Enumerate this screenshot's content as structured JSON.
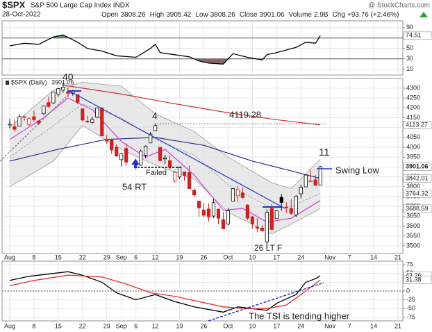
{
  "header": {
    "symbol": "$SPX",
    "name": "S&P 500 Large Cap Index INDX",
    "date": "28-Oct-2022",
    "source": "@ StockCharts.com",
    "quote": [
      {
        "label": "Open",
        "value": "3808.26"
      },
      {
        "label": "High",
        "value": "3905.42"
      },
      {
        "label": "Low",
        "value": "3808.26"
      },
      {
        "label": "Close",
        "value": "3901.06"
      },
      {
        "label": "Volume",
        "value": "2.9B"
      },
      {
        "label": "Chg",
        "value": "+93.76 (+2.46%)"
      }
    ]
  },
  "chart_data": [
    {
      "type": "line",
      "ylim": [
        -1,
        103
      ],
      "yticks": [
        90,
        70,
        50,
        30,
        10
      ],
      "levels": [
        70,
        30
      ],
      "fill_above": "#5e8f5e",
      "fill_below": "#8f6464",
      "series": [
        {
          "color": "#000000",
          "flag": true,
          "x": [
            "2022-08-01",
            "2022-08-04",
            "2022-08-09",
            "2022-08-12",
            "2022-08-16",
            "2022-08-19",
            "2022-08-23",
            "2022-08-26",
            "2022-08-31",
            "2022-09-06",
            "2022-09-09",
            "2022-09-12",
            "2022-09-13",
            "2022-09-16",
            "2022-09-21",
            "2022-09-23",
            "2022-09-27",
            "2022-09-30",
            "2022-10-04",
            "2022-10-07",
            "2022-10-12",
            "2022-10-13",
            "2022-10-17",
            "2022-10-21",
            "2022-10-25",
            "2022-10-27",
            "2022-10-28"
          ],
          "values": [
            55,
            60,
            58,
            72,
            76,
            62,
            50,
            45,
            36,
            33,
            50,
            58,
            42,
            38,
            34,
            26,
            22,
            20,
            40,
            33,
            28,
            38,
            42,
            52,
            62,
            60,
            74.51
          ]
        }
      ]
    },
    {
      "type": "candlestick",
      "legend": "$SPX (Daily)",
      "up_color": "#000000",
      "down_color": "#cc2222",
      "xlim": [
        "2022-07-29",
        "2022-11-22"
      ],
      "ylim": [
        3461,
        4349
      ],
      "yticks": [
        3500,
        3550,
        3600,
        3650,
        3700,
        3750,
        3800,
        3850,
        3900,
        3950,
        4000,
        4050,
        4100,
        4150,
        4200,
        4250,
        4300
      ],
      "xticks": [
        {
          "value": "2022-08-01",
          "label": "Aug"
        },
        {
          "value": "2022-08-08",
          "label": "8"
        },
        {
          "value": "2022-08-15",
          "label": "15"
        },
        {
          "value": "2022-08-22",
          "label": "22"
        },
        {
          "value": "2022-08-29",
          "label": "29"
        },
        {
          "value": "2022-09-01",
          "label": "Sep"
        },
        {
          "value": "2022-09-06",
          "label": "6"
        },
        {
          "value": "2022-09-12",
          "label": "12"
        },
        {
          "value": "2022-09-19",
          "label": "19"
        },
        {
          "value": "2022-09-26",
          "label": "26"
        },
        {
          "value": "2022-10-03",
          "label": "Oct"
        },
        {
          "value": "2022-10-10",
          "label": "10"
        },
        {
          "value": "2022-10-17",
          "label": "17"
        },
        {
          "value": "2022-10-24",
          "label": "24"
        },
        {
          "value": "2022-11-01",
          "label": "Nov"
        },
        {
          "value": "2022-11-07",
          "label": "7"
        },
        {
          "value": "2022-11-14",
          "label": "14"
        },
        {
          "value": "2022-11-21",
          "label": "21"
        }
      ],
      "x": [
        "2022-08-01",
        "2022-08-02",
        "2022-08-03",
        "2022-08-04",
        "2022-08-05",
        "2022-08-08",
        "2022-08-09",
        "2022-08-10",
        "2022-08-11",
        "2022-08-12",
        "2022-08-15",
        "2022-08-16",
        "2022-08-17",
        "2022-08-18",
        "2022-08-19",
        "2022-08-22",
        "2022-08-23",
        "2022-08-24",
        "2022-08-25",
        "2022-08-26",
        "2022-08-29",
        "2022-08-30",
        "2022-08-31",
        "2022-09-01",
        "2022-09-02",
        "2022-09-06",
        "2022-09-07",
        "2022-09-08",
        "2022-09-09",
        "2022-09-12",
        "2022-09-13",
        "2022-09-14",
        "2022-09-15",
        "2022-09-16",
        "2022-09-19",
        "2022-09-20",
        "2022-09-21",
        "2022-09-22",
        "2022-09-23",
        "2022-09-26",
        "2022-09-27",
        "2022-09-28",
        "2022-09-29",
        "2022-09-30",
        "2022-10-03",
        "2022-10-04",
        "2022-10-05",
        "2022-10-06",
        "2022-10-07",
        "2022-10-10",
        "2022-10-11",
        "2022-10-12",
        "2022-10-13",
        "2022-10-14",
        "2022-10-17",
        "2022-10-18",
        "2022-10-19",
        "2022-10-20",
        "2022-10-21",
        "2022-10-24",
        "2022-10-25",
        "2022-10-26",
        "2022-10-27",
        "2022-10-28"
      ],
      "open": [
        4113,
        4105,
        4107,
        4155,
        4116,
        4155,
        4134,
        4170,
        4227,
        4225,
        4270,
        4290,
        4280,
        4274,
        4267,
        4195,
        4133,
        4126,
        4153,
        4199,
        4035,
        4041,
        4000,
        3937,
        3994,
        3931,
        3909,
        3960,
        4022,
        4084,
        4000,
        3941,
        3932,
        3830,
        3849,
        3875,
        3872,
        3782,
        3727,
        3682,
        3687,
        3651,
        3687,
        3633,
        3610,
        3727,
        3754,
        3769,
        3707,
        3647,
        3595,
        3590,
        3520,
        3690,
        3638,
        3746,
        3696,
        3689,
        3657,
        3764,
        3799,
        3825,
        3835,
        3808.26
      ],
      "high": [
        4144,
        4141,
        4167,
        4161,
        4152,
        4186,
        4138,
        4211,
        4258,
        4280,
        4301,
        4326,
        4303,
        4292,
        4267,
        4196,
        4160,
        4156,
        4200,
        4204,
        4063,
        4044,
        4015,
        3970,
        4019,
        3942,
        3987,
        4010,
        4076,
        4119,
        4000,
        3962,
        3959,
        3880,
        3900,
        3877,
        3907,
        3790,
        3727,
        3716,
        3717,
        3736,
        3687,
        3672,
        3689,
        3791,
        3806,
        3797,
        3711,
        3652,
        3640,
        3605,
        3685,
        3712,
        3680,
        3762,
        3721,
        3737,
        3757,
        3810,
        3862,
        3886,
        3859,
        3905.42
      ],
      "low": [
        4096,
        4080,
        4107,
        4135,
        4107,
        4129,
        4112,
        4165,
        4201,
        4220,
        4257,
        4277,
        4255,
        4262,
        4219,
        4131,
        4124,
        4119,
        4147,
        4057,
        4017,
        3965,
        3954,
        3903,
        3907,
        3886,
        3907,
        3944,
        4022,
        4084,
        3928,
        3915,
        3888,
        3820,
        3839,
        3830,
        3789,
        3749,
        3648,
        3644,
        3623,
        3641,
        3610,
        3584,
        3604,
        3727,
        3722,
        3739,
        3631,
        3588,
        3568,
        3571,
        3492,
        3579,
        3638,
        3679,
        3666,
        3656,
        3647,
        3741,
        3799,
        3824,
        3804,
        3808.26
      ],
      "close": [
        4118,
        4091,
        4155,
        4152,
        4145,
        4140,
        4122,
        4210,
        4207,
        4280,
        4297,
        4305,
        4274,
        4284,
        4228,
        4138,
        4128,
        4141,
        4199,
        4058,
        4031,
        3986,
        3955,
        3967,
        3924,
        3909,
        3980,
        4006,
        4067,
        4110,
        3932,
        3946,
        3901,
        3873,
        3900,
        3856,
        3790,
        3758,
        3693,
        3655,
        3647,
        3719,
        3640,
        3586,
        3678,
        3791,
        3783,
        3745,
        3640,
        3612,
        3589,
        3577,
        3670,
        3583,
        3677,
        3720,
        3695,
        3665,
        3752,
        3797,
        3859,
        3830,
        3807,
        3901.06
      ],
      "band": {
        "color": "#9a9a9a",
        "fill": "#e2e2e2",
        "x": [
          "2022-08-01",
          "2022-08-12",
          "2022-08-22",
          "2022-09-01",
          "2022-09-12",
          "2022-09-22",
          "2022-10-03",
          "2022-10-14",
          "2022-10-20",
          "2022-10-28"
        ],
        "upper": [
          4100,
          4290,
          4330,
          4310,
          4170,
          4080,
          3950,
          3820,
          3790,
          3940
        ],
        "middle": [
          3950,
          4110,
          4220,
          4150,
          4040,
          3960,
          3810,
          3690,
          3700,
          3764.32
        ],
        "lower": [
          3800,
          3930,
          4110,
          3990,
          3910,
          3840,
          3670,
          3560,
          3610,
          3688.59
        ]
      },
      "overlays": [
        {
          "color": "#cc3333",
          "flag": true,
          "x": [
            "2022-08-16",
            "2022-09-01",
            "2022-09-15",
            "2022-10-03",
            "2022-10-17",
            "2022-10-28"
          ],
          "values": [
            4315,
            4270,
            4225,
            4175,
            4140,
            4113.27
          ]
        },
        {
          "color": "#2a2a8a",
          "flag": true,
          "x": [
            "2022-08-01",
            "2022-08-15",
            "2022-08-29",
            "2022-09-12",
            "2022-09-26",
            "2022-10-10",
            "2022-10-20",
            "2022-10-28"
          ],
          "values": [
            3930,
            3990,
            4040,
            4050,
            4010,
            3930,
            3880,
            3842.01
          ]
        },
        {
          "color": "#d63fd6",
          "flag": false,
          "x": [
            "2022-08-01",
            "2022-08-10",
            "2022-08-17",
            "2022-08-24",
            "2022-09-01",
            "2022-09-08",
            "2022-09-14",
            "2022-09-22",
            "2022-09-30",
            "2022-10-06",
            "2022-10-13",
            "2022-10-20",
            "2022-10-28"
          ],
          "values": [
            4040,
            4150,
            4250,
            4190,
            4030,
            3950,
            3990,
            3860,
            3680,
            3690,
            3620,
            3640,
            3730
          ]
        }
      ],
      "hline": 4119.28,
      "annotations": [
        {
          "text": "40",
          "color": "#2233cc"
        },
        {
          "text": "4",
          "color": "#2233cc"
        },
        {
          "text": "Failed",
          "color": "#cc2222"
        },
        {
          "text": "54 RT",
          "color": "#2233cc"
        },
        {
          "text": "26 LT F",
          "color": "#2233cc"
        },
        {
          "text": "11",
          "color": "#2233cc"
        },
        {
          "text": "Swing Low",
          "color": "#2233cc"
        }
      ]
    },
    {
      "type": "line",
      "ylim": [
        -85,
        85
      ],
      "yticks": [
        75,
        50,
        25,
        0,
        -25,
        -50,
        -75
      ],
      "levels": [
        0
      ],
      "series": [
        {
          "color": "#000000",
          "flag": true,
          "x": [
            "2022-08-01",
            "2022-08-05",
            "2022-08-12",
            "2022-08-17",
            "2022-08-22",
            "2022-08-26",
            "2022-08-31",
            "2022-09-06",
            "2022-09-12",
            "2022-09-16",
            "2022-09-22",
            "2022-09-28",
            "2022-09-30",
            "2022-10-05",
            "2022-10-10",
            "2022-10-13",
            "2022-10-17",
            "2022-10-21",
            "2022-10-25",
            "2022-10-27",
            "2022-10-28"
          ],
          "values": [
            30,
            42,
            50,
            55,
            45,
            25,
            -5,
            -25,
            -10,
            -30,
            -45,
            -55,
            -60,
            -45,
            -50,
            -55,
            -35,
            -10,
            25,
            35,
            43.26
          ]
        },
        {
          "color": "#e0302a",
          "flag": true,
          "x": [
            "2022-08-01",
            "2022-08-08",
            "2022-08-17",
            "2022-08-26",
            "2022-09-02",
            "2022-09-09",
            "2022-09-16",
            "2022-09-23",
            "2022-09-30",
            "2022-10-07",
            "2022-10-13",
            "2022-10-19",
            "2022-10-24",
            "2022-10-28"
          ],
          "values": [
            15,
            30,
            45,
            40,
            20,
            -5,
            -15,
            -30,
            -45,
            -50,
            -50,
            -40,
            -10,
            31.38
          ]
        }
      ],
      "annotations": [
        {
          "text": "The TSI is tending higher",
          "color": "#2233cc"
        }
      ]
    }
  ]
}
